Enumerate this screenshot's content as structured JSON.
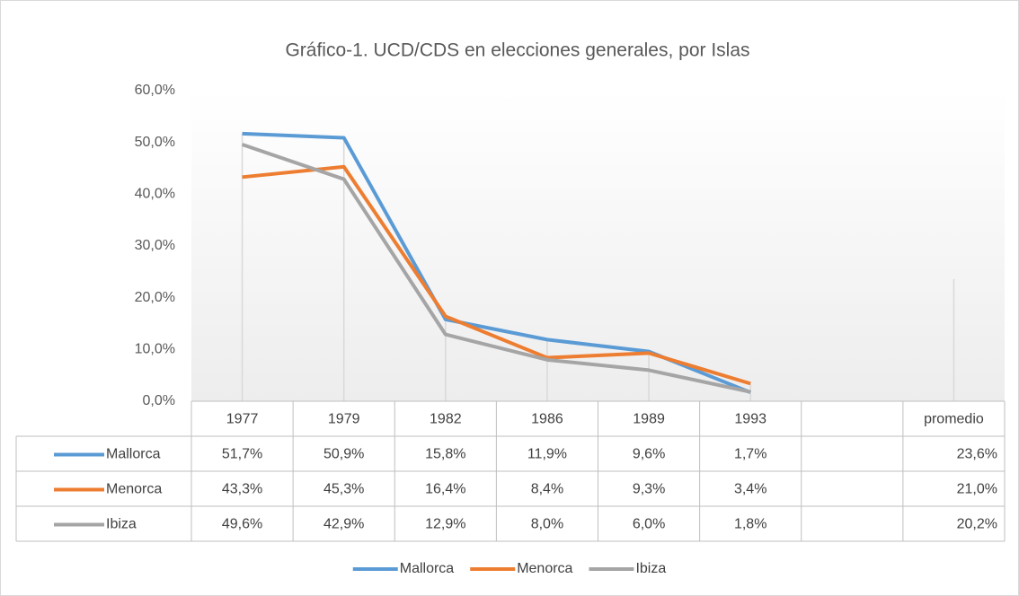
{
  "chart_data": {
    "type": "line",
    "title": "Gráfico-1. UCD/CDS en elecciones generales, por Islas",
    "categories": [
      "1977",
      "1979",
      "1982",
      "1986",
      "1989",
      "1993",
      null,
      "promedio"
    ],
    "series": [
      {
        "name": "Mallorca",
        "color": "#5b9bd5",
        "values": [
          51.7,
          50.9,
          15.8,
          11.9,
          9.6,
          1.7,
          null,
          23.6
        ],
        "value_labels": [
          "51,7%",
          "50,9%",
          "15,8%",
          "11,9%",
          "9,6%",
          "1,7%",
          null,
          "23,6%"
        ]
      },
      {
        "name": "Menorca",
        "color": "#ed7d31",
        "values": [
          43.3,
          45.3,
          16.4,
          8.4,
          9.3,
          3.4,
          null,
          21.0
        ],
        "value_labels": [
          "43,3%",
          "45,3%",
          "16,4%",
          "8,4%",
          "9,3%",
          "3,4%",
          null,
          "21,0%"
        ]
      },
      {
        "name": "Ibiza",
        "color": "#a5a5a5",
        "values": [
          49.6,
          42.9,
          12.9,
          8.0,
          6.0,
          1.8,
          null,
          20.2
        ],
        "value_labels": [
          "49,6%",
          "42,9%",
          "12,9%",
          "8,0%",
          "6,0%",
          "1,8%",
          null,
          "20,2%"
        ]
      }
    ],
    "ylim": [
      0,
      60
    ],
    "yticks": [
      {
        "value": 0,
        "label": "0,0%"
      },
      {
        "value": 10,
        "label": "10,0%"
      },
      {
        "value": 20,
        "label": "20,0%"
      },
      {
        "value": 30,
        "label": "30,0%"
      },
      {
        "value": 40,
        "label": "40,0%"
      },
      {
        "value": 50,
        "label": "50,0%"
      },
      {
        "value": 60,
        "label": "60,0%"
      }
    ],
    "drop_lines": true,
    "data_table": true,
    "legend": "bottom"
  }
}
